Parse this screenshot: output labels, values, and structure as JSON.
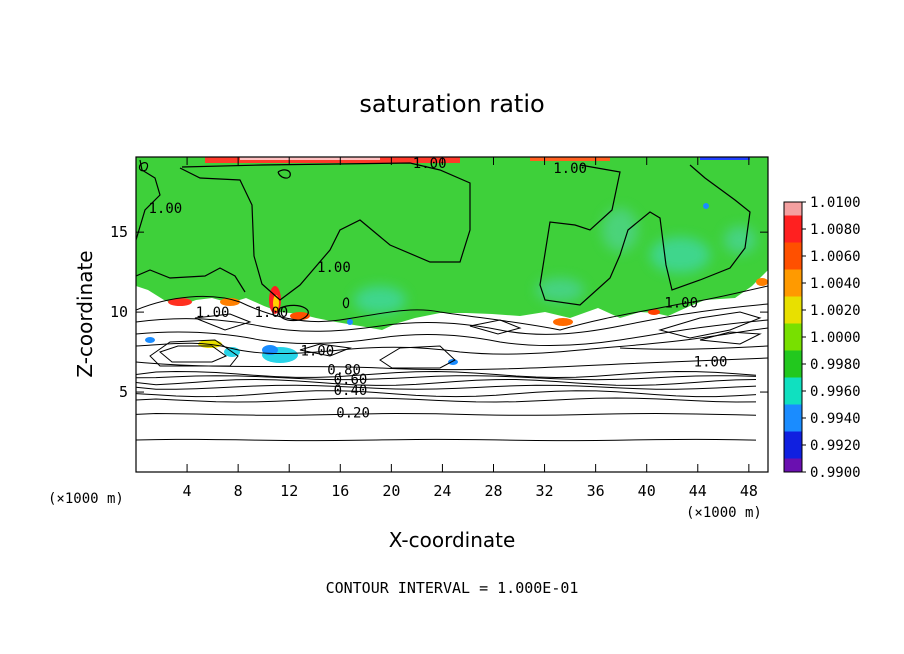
{
  "chart_data": {
    "type": "heatmap",
    "title": "saturation ratio",
    "xlabel": "X-coordinate",
    "ylabel": "Z-coordinate",
    "x_unit_left": "(×1000 m)",
    "x_unit_right": "(×1000 m)",
    "xlim": [
      0,
      49.5
    ],
    "ylim": [
      0,
      19.7
    ],
    "x_ticks": [
      4,
      8,
      12,
      16,
      20,
      24,
      28,
      32,
      36,
      40,
      44,
      48
    ],
    "y_ticks": [
      5,
      10,
      15
    ],
    "footnote": "CONTOUR INTERVAL = 1.000E-01",
    "colorbar": {
      "levels": [
        "1.0100",
        "1.0080",
        "1.0060",
        "1.0040",
        "1.0020",
        "1.0000",
        "0.9980",
        "0.9960",
        "0.9940",
        "0.9920",
        "0.9900"
      ],
      "colors": [
        "#f4a0a0",
        "#ff2020",
        "#ff5000",
        "#ff9a00",
        "#e8e000",
        "#78e000",
        "#22c81e",
        "#10e0c0",
        "#1a8cff",
        "#1020e0",
        "#6a10b0"
      ]
    },
    "contour_labels": [
      {
        "text": "1.00",
        "x": 23.0,
        "y": 19.0
      },
      {
        "text": "1.00",
        "x": 34.0,
        "y": 18.7
      },
      {
        "text": "1.00",
        "x": 2.3,
        "y": 16.2
      },
      {
        "text": "1.00",
        "x": 15.5,
        "y": 12.5
      },
      {
        "text": "1.00",
        "x": 6.0,
        "y": 9.7
      },
      {
        "text": "1.00",
        "x": 10.6,
        "y": 9.7
      },
      {
        "text": "1.00",
        "x": 42.7,
        "y": 10.3
      },
      {
        "text": "1.00",
        "x": 14.2,
        "y": 7.3
      },
      {
        "text": "1.00",
        "x": 45.0,
        "y": 6.6
      },
      {
        "text": "0.80",
        "x": 16.3,
        "y": 6.1
      },
      {
        "text": "0.60",
        "x": 16.8,
        "y": 5.5
      },
      {
        "text": "0.40",
        "x": 16.8,
        "y": 4.8
      },
      {
        "text": "0.20",
        "x": 17.0,
        "y": 3.4
      }
    ],
    "horizontal_contours_z": [
      2.0,
      3.6,
      4.5,
      4.9,
      5.3,
      5.6,
      5.9,
      6.1
    ],
    "grid": false,
    "legend": "right"
  }
}
